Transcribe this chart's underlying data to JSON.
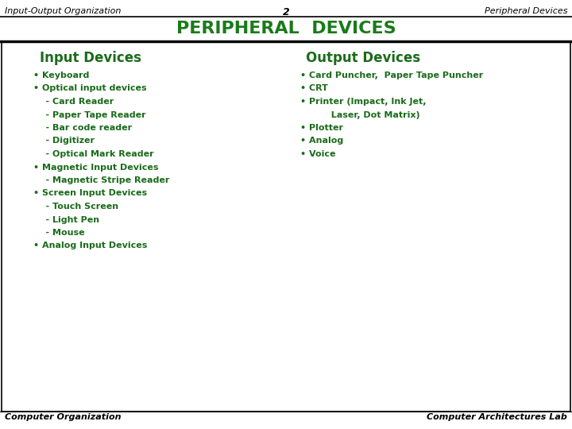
{
  "header_left": "Input-Output Organization",
  "header_center": "2",
  "header_right": "Peripheral Devices",
  "main_title": "PERIPHERAL  DEVICES",
  "main_title_color": "#1a7a1a",
  "input_heading": "Input Devices",
  "output_heading": "Output Devices",
  "input_items": [
    "• Keyboard",
    "• Optical input devices",
    "    - Card Reader",
    "    - Paper Tape Reader",
    "    - Bar code reader",
    "    - Digitizer",
    "    - Optical Mark Reader",
    "• Magnetic Input Devices",
    "    - Magnetic Stripe Reader",
    "• Screen Input Devices",
    "    - Touch Screen",
    "    - Light Pen",
    "    - Mouse",
    "• Analog Input Devices"
  ],
  "output_items": [
    "• Card Puncher,  Paper Tape Puncher",
    "• CRT",
    "• Printer (Impact, Ink Jet,",
    "          Laser, Dot Matrix)",
    "• Plotter",
    "• Analog",
    "• Voice"
  ],
  "footer_left": "Computer Organization",
  "footer_right": "Computer Architectures Lab",
  "bg_color": "#ffffff",
  "text_color": "#1a6b1a",
  "black": "#000000",
  "header_font_size": 8,
  "title_font_size": 16,
  "section_heading_font_size": 12,
  "body_font_size": 8,
  "footer_font_size": 8
}
